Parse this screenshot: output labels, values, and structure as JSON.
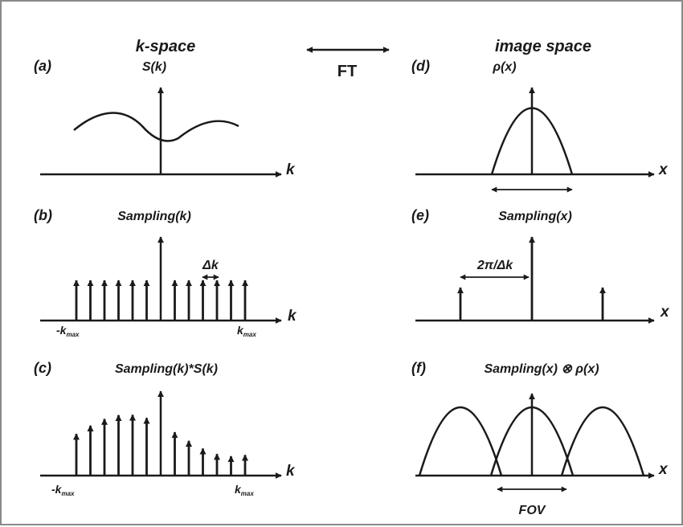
{
  "headers": {
    "kspace": "k-space",
    "image_space": "image space",
    "ft": "FT"
  },
  "panels": {
    "a": {
      "label": "(a)",
      "title": "S(k)",
      "axis": "k"
    },
    "b": {
      "label": "(b)",
      "title": "Sampling(k)",
      "axis": "k",
      "spacing": "Δk",
      "kmin": "-k",
      "kmax": "k",
      "kmax_sub": "max"
    },
    "c": {
      "label": "(c)",
      "title": "Sampling(k)*S(k)",
      "axis": "k",
      "kmin": "-k",
      "kmax": "k",
      "kmax_sub": "max"
    },
    "d": {
      "label": "(d)",
      "title": "ρ(x)",
      "axis": "x"
    },
    "e": {
      "label": "(e)",
      "title": "Sampling(x)",
      "axis": "x",
      "spacing": "2π/Δk"
    },
    "f": {
      "label": "(f)",
      "title": "Sampling(x) ⊗ ρ(x)",
      "axis": "x",
      "fov": "FOV"
    }
  }
}
